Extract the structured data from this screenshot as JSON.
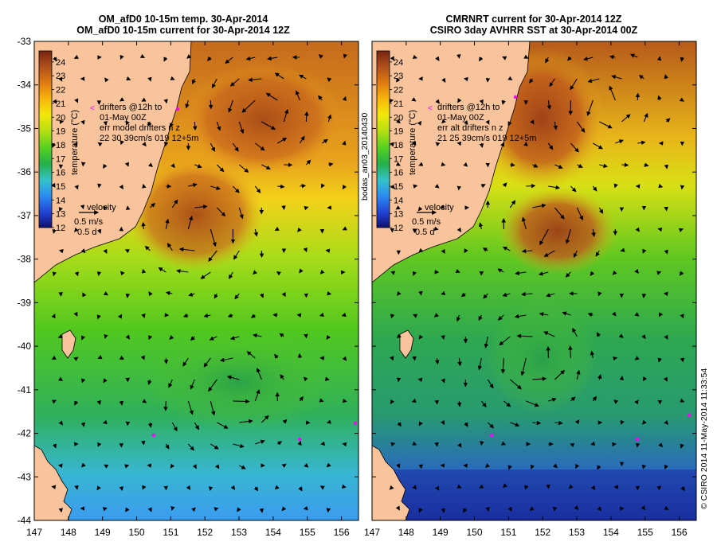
{
  "panels": [
    {
      "id": "left",
      "title_line1": "OM_afD0 10-15m temp. 30-Apr-2014",
      "title_line2": "OM_afD0 10-15m current for 30-Apr-2014 12Z",
      "legend_lines": [
        "drifters @12h to",
        "01-May 00Z",
        "err model drifters n  z",
        "22   30    39cm/s 019 12+5m"
      ],
      "velocity_label": "velocity",
      "velocity_scale": "0.5 m/s",
      "velocity_time": "0.5 d"
    },
    {
      "id": "right",
      "title_line1": "CMRNRT current for 30-Apr-2014 12Z",
      "title_line2": "CSIRO 3day AVHRR SST at 30-Apr-2014 00Z",
      "legend_lines": [
        "drifters @12h to",
        "01-May 00Z",
        "err alt drifters n  z",
        "21 25 39cm/s 019 12+5m"
      ],
      "velocity_label": "velocity",
      "velocity_scale": "0.5 m/s",
      "velocity_time": "0.5 d"
    }
  ],
  "colorbar": {
    "label": "temperature (°C)",
    "ticks": [
      24,
      23,
      22,
      21,
      20,
      19,
      18,
      17,
      16,
      15,
      14,
      13,
      12
    ],
    "min": 12,
    "max": 24.8
  },
  "axes": {
    "lon_ticks": [
      147,
      148,
      149,
      150,
      151,
      152,
      153,
      154,
      155,
      156
    ],
    "lat_ticks": [
      -33,
      -34,
      -35,
      -36,
      -37,
      -38,
      -39,
      -40,
      -41,
      -42,
      -43,
      -44
    ],
    "lon_range": [
      147,
      156.5
    ],
    "lat_range": [
      -44,
      -33
    ]
  },
  "side_text_left": "bodas_an03_20140430",
  "side_text_right": "© CSIRO 2014  11-May-2014 11:33:54",
  "colors": {
    "land": "#F9C39B",
    "coast": "#000000",
    "drifter": "#FF00FF",
    "frame": "#000000"
  }
}
